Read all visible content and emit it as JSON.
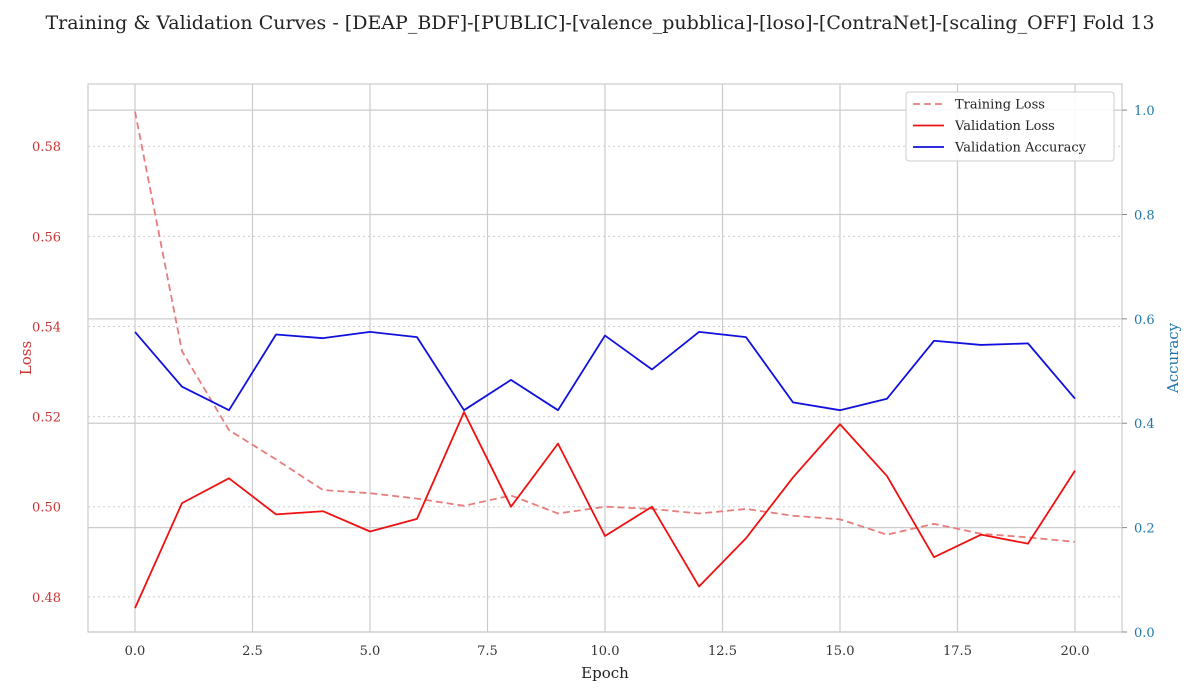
{
  "chart_data": {
    "type": "line",
    "title": "Training & Validation Curves - [DEAP_BDF]-[PUBLIC]-[valence_pubblica]-[loso]-[ContraNet]-[scaling_OFF] Fold 13",
    "xlabel": "Epoch",
    "ylabel_left": "Loss",
    "ylabel_right": "Accuracy",
    "xlim": [
      -1,
      21
    ],
    "ylim_left": [
      0.4722,
      0.5938
    ],
    "ylim_right": [
      0,
      1.05
    ],
    "x_ticks": [
      "0.0",
      "2.5",
      "5.0",
      "7.5",
      "10.0",
      "12.5",
      "15.0",
      "17.5",
      "20.0"
    ],
    "y_left_ticks": [
      "0.48",
      "0.50",
      "0.52",
      "0.54",
      "0.56",
      "0.58"
    ],
    "y_right_ticks": [
      "0.0",
      "0.2",
      "0.4",
      "0.6",
      "0.8",
      "1.0"
    ],
    "x": [
      0,
      1,
      2,
      3,
      4,
      5,
      6,
      7,
      8,
      9,
      10,
      11,
      12,
      13,
      14,
      15,
      16,
      17,
      18,
      19,
      20
    ],
    "series": [
      {
        "name": "Training Loss",
        "axis": "left",
        "color": "#e87d7d",
        "style": "dashed",
        "values": [
          0.5877,
          0.5345,
          0.517,
          0.5105,
          0.5037,
          0.503,
          0.5018,
          0.5002,
          0.5025,
          0.4985,
          0.5,
          0.4995,
          0.4985,
          0.4995,
          0.498,
          0.4972,
          0.4938,
          0.4962,
          0.494,
          0.4932,
          0.4922
        ]
      },
      {
        "name": "Validation Loss",
        "axis": "left",
        "color": "#ee1111",
        "style": "solid",
        "values": [
          0.4775,
          0.5008,
          0.5063,
          0.4983,
          0.499,
          0.4945,
          0.4973,
          0.521,
          0.5,
          0.514,
          0.4935,
          0.5,
          0.4823,
          0.493,
          0.5065,
          0.5183,
          0.5068,
          0.4888,
          0.4938,
          0.4918,
          0.508
        ]
      },
      {
        "name": "Validation Accuracy",
        "axis": "right",
        "color": "#1111dd",
        "style": "solid",
        "values": [
          0.575,
          0.47,
          0.425,
          0.57,
          0.563,
          0.575,
          0.565,
          0.425,
          0.483,
          0.425,
          0.568,
          0.503,
          0.575,
          0.565,
          0.44,
          0.425,
          0.447,
          0.558,
          0.55,
          0.553,
          0.447
        ]
      }
    ],
    "grid": true,
    "legend_position": "top-right",
    "colors": {
      "left_axis": "#cc3333",
      "right_axis": "#2277aa",
      "grid": "#cccccc",
      "frame": "#cccccc"
    }
  }
}
